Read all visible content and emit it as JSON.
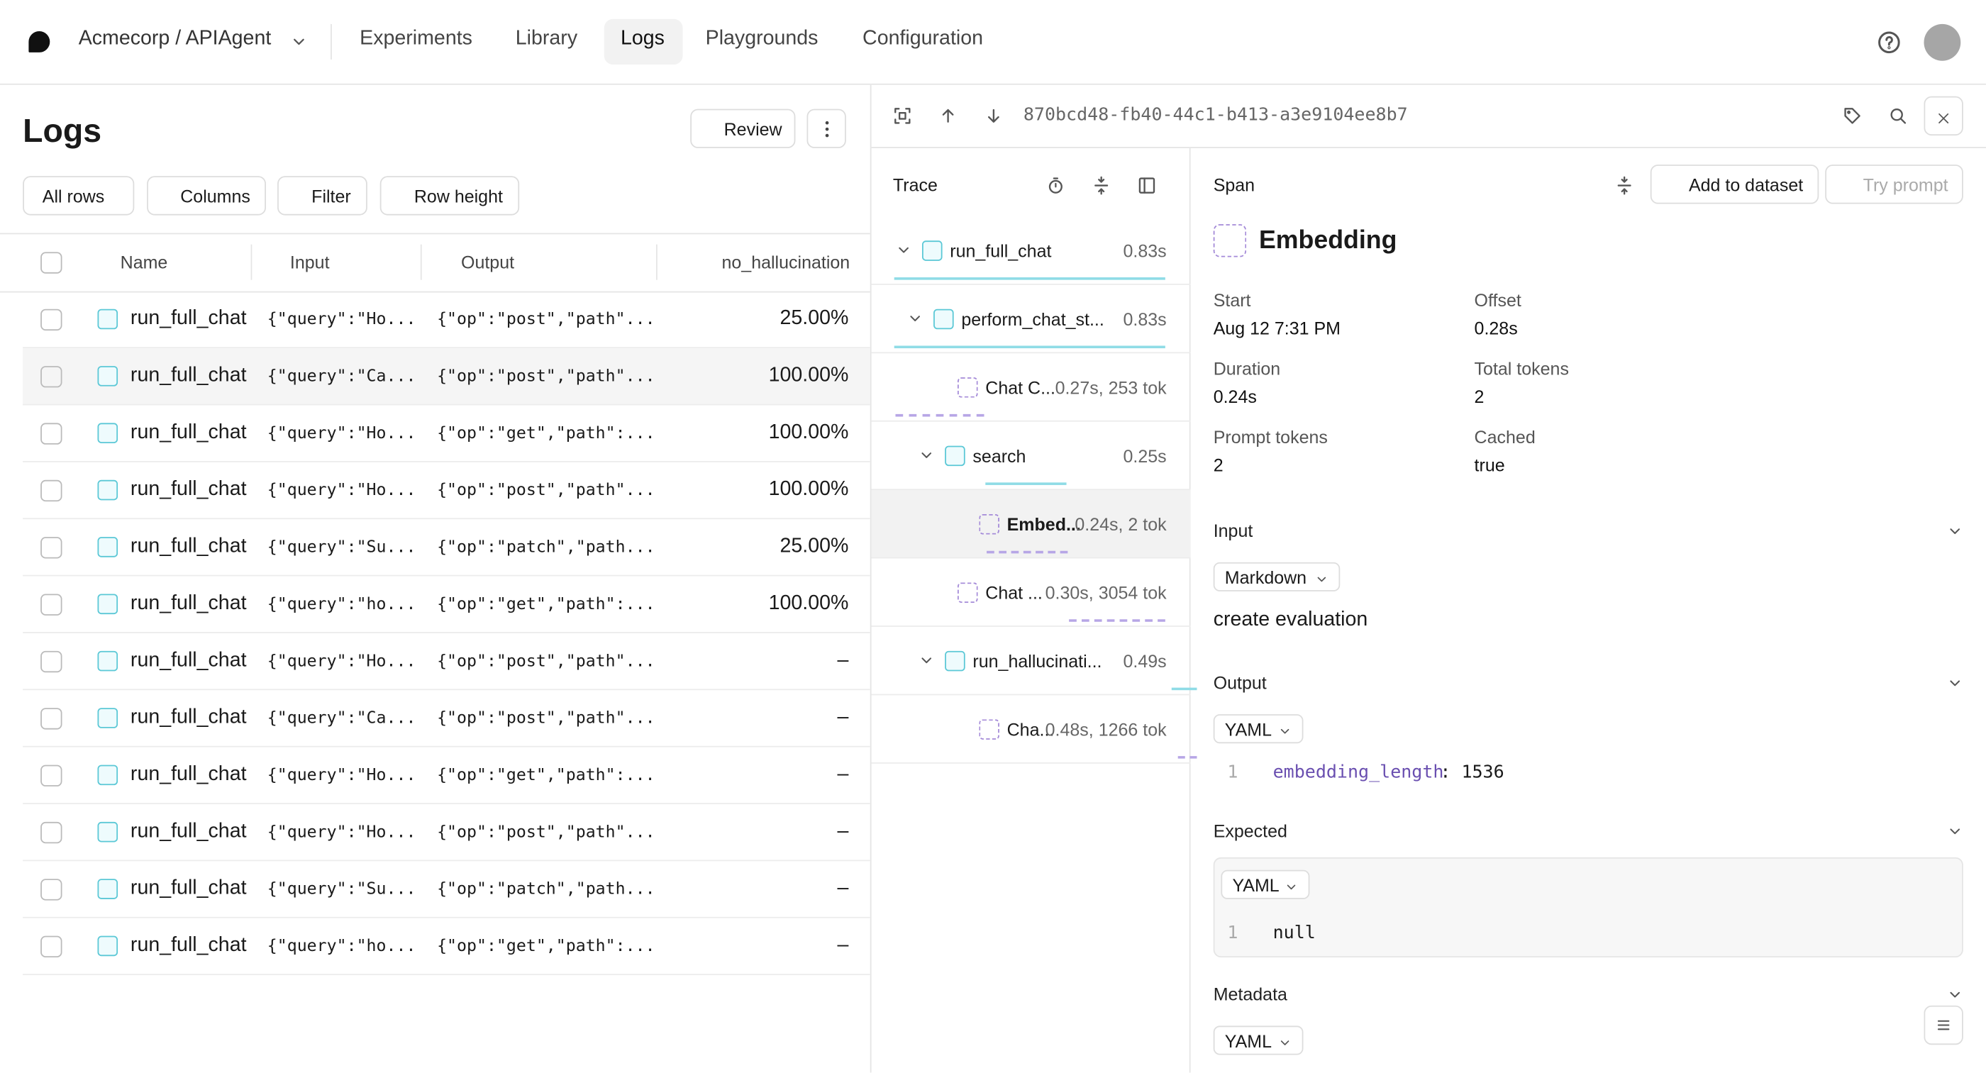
{
  "nav": {
    "org": "Acmecorp / APIAgent",
    "tabs": [
      "Experiments",
      "Library",
      "Logs",
      "Playgrounds",
      "Configuration"
    ]
  },
  "logs": {
    "title": "Logs",
    "review": "Review",
    "toolbar": [
      "All rows",
      "Columns",
      "Filter",
      "Row height"
    ],
    "columns": [
      "Name",
      "Input",
      "Output",
      "no_hallucination"
    ],
    "rows": [
      [
        "run_full_chat",
        "{\"query\":\"Ho...",
        "{\"op\":\"post\",\"path\"...",
        "25.00%"
      ],
      [
        "run_full_chat",
        "{\"query\":\"Ca...",
        "{\"op\":\"post\",\"path\"...",
        "100.00%"
      ],
      [
        "run_full_chat",
        "{\"query\":\"Ho...",
        "{\"op\":\"get\",\"path\":...",
        "100.00%"
      ],
      [
        "run_full_chat",
        "{\"query\":\"Ho...",
        "{\"op\":\"post\",\"path\"...",
        "100.00%"
      ],
      [
        "run_full_chat",
        "{\"query\":\"Su...",
        "{\"op\":\"patch\",\"path...",
        "25.00%"
      ],
      [
        "run_full_chat",
        "{\"query\":\"ho...",
        "{\"op\":\"get\",\"path\":...",
        "100.00%"
      ],
      [
        "run_full_chat",
        "{\"query\":\"Ho...",
        "{\"op\":\"post\",\"path\"...",
        "–"
      ],
      [
        "run_full_chat",
        "{\"query\":\"Ca...",
        "{\"op\":\"post\",\"path\"...",
        "–"
      ],
      [
        "run_full_chat",
        "{\"query\":\"Ho...",
        "{\"op\":\"get\",\"path\":...",
        "–"
      ],
      [
        "run_full_chat",
        "{\"query\":\"Ho...",
        "{\"op\":\"post\",\"path\"...",
        "–"
      ],
      [
        "run_full_chat",
        "{\"query\":\"Su...",
        "{\"op\":\"patch\",\"path...",
        "–"
      ],
      [
        "run_full_chat",
        "{\"query\":\"ho...",
        "{\"op\":\"get\",\"path\":...",
        "–"
      ]
    ]
  },
  "trace": {
    "id": "870bcd48-fb40-44c1-b413-a3e9104ee8b7",
    "title": "Trace",
    "spans": [
      {
        "name": "run_full_chat",
        "meta": "0.83s"
      },
      {
        "name": "perform_chat_st...",
        "meta": "0.83s"
      },
      {
        "name": "Chat C...",
        "meta": "0.27s, 253 tok"
      },
      {
        "name": "search",
        "meta": "0.25s"
      },
      {
        "name": "Embed...",
        "meta": "0.24s, 2 tok"
      },
      {
        "name": "Chat ...",
        "meta": "0.30s, 3054 tok"
      },
      {
        "name": "run_hallucinati...",
        "meta": "0.49s"
      },
      {
        "name": "Cha...",
        "meta": "0.48s, 1266 tok"
      }
    ]
  },
  "span": {
    "label": "Span",
    "add": "Add to dataset",
    "try": "Try prompt",
    "name": "Embedding",
    "fields": [
      {
        "label": "Start",
        "value": "Aug 12 7:31 PM"
      },
      {
        "label": "Offset",
        "value": "0.28s"
      },
      {
        "label": "Duration",
        "value": "0.24s"
      },
      {
        "label": "Total tokens",
        "value": "2"
      },
      {
        "label": "Prompt tokens",
        "value": "2"
      },
      {
        "label": "Cached",
        "value": "true"
      }
    ],
    "input": {
      "title": "Input",
      "format": "Markdown",
      "text": "create evaluation"
    },
    "output": {
      "title": "Output",
      "format": "YAML",
      "line": "1",
      "code": [
        "embedding_length",
        ": 1536"
      ]
    },
    "expected": {
      "title": "Expected",
      "format": "YAML",
      "line": "1",
      "code": "null"
    },
    "metadata": {
      "title": "Metadata",
      "format": "YAML"
    }
  }
}
